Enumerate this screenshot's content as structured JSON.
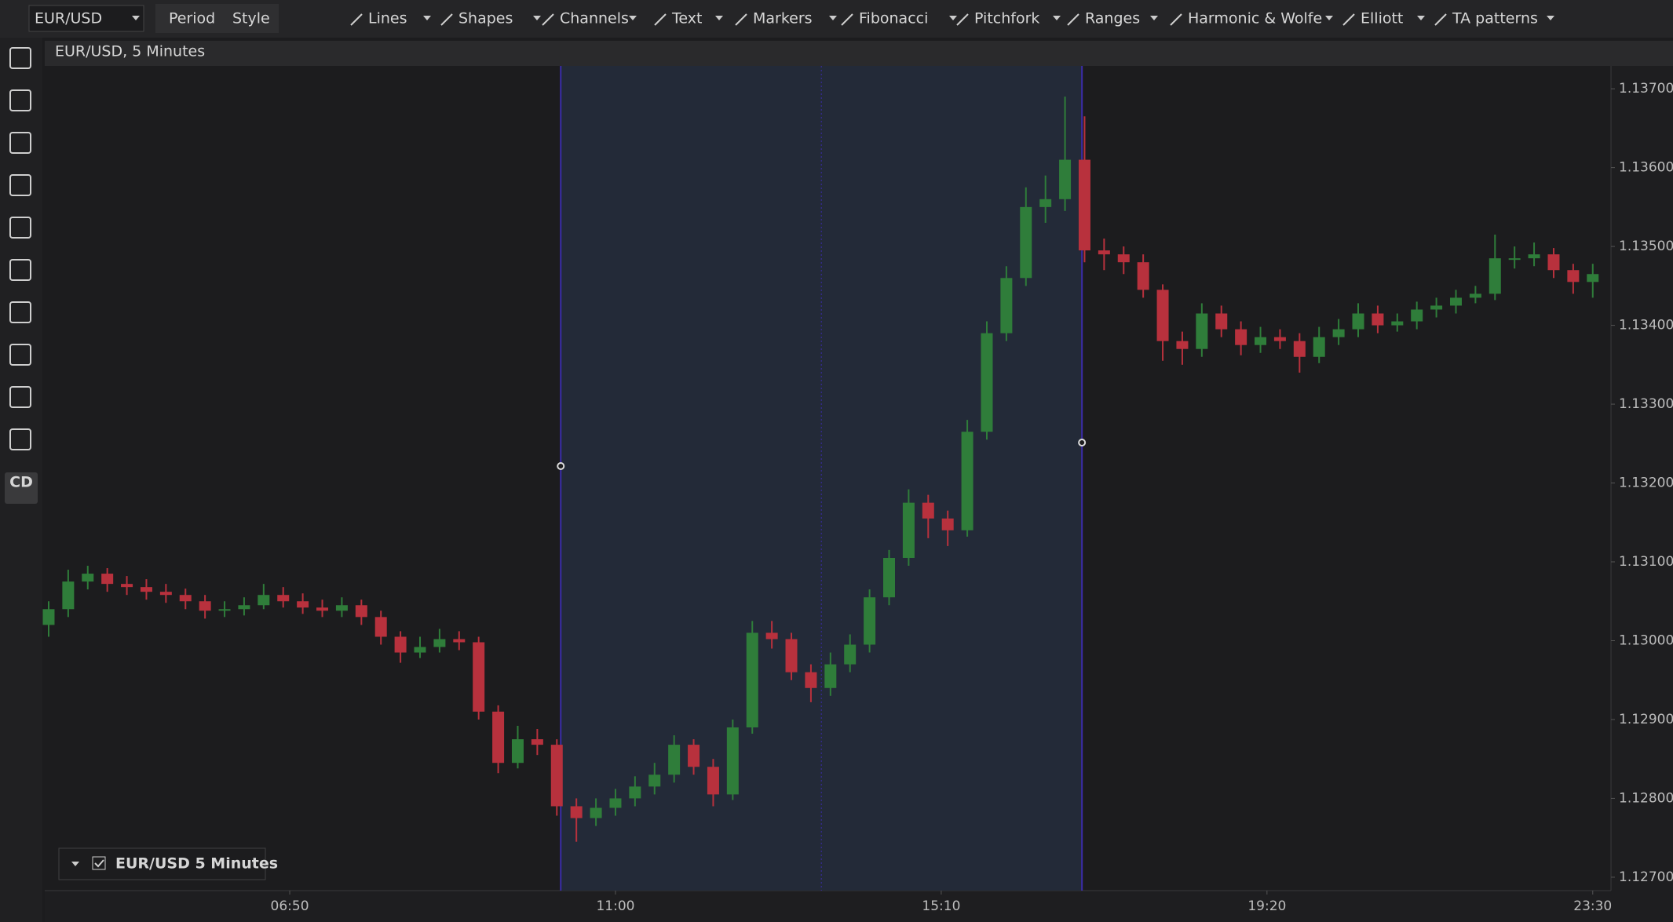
{
  "toolbar": {
    "symbol": "EUR/USD",
    "buttons": [
      "Period",
      "Style"
    ],
    "tools": [
      "Lines",
      "Shapes",
      "Channels",
      "Text",
      "Markers",
      "Fibonacci",
      "Pitchfork",
      "Ranges",
      "Harmonic & Wolfe",
      "Elliott",
      "TA patterns"
    ]
  },
  "window": {
    "title": "EUR/USD, 5 Minutes"
  },
  "sidebar": {
    "label": "CD"
  },
  "chart_data": {
    "type": "candlestick",
    "up_color": "#2f7d3a",
    "down_color": "#b8313d",
    "grid": false,
    "xlim": [
      222,
      1424
    ],
    "ylim": [
      1.12683,
      1.13729
    ],
    "xticks": [
      {
        "value": 410,
        "label": "06:50"
      },
      {
        "value": 660,
        "label": "11:00"
      },
      {
        "value": 910,
        "label": "15:10"
      },
      {
        "value": 1160,
        "label": "19:20"
      },
      {
        "value": 1410,
        "label": "23:30"
      }
    ],
    "yticks": [
      {
        "value": 1.127,
        "label": "1.12700"
      },
      {
        "value": 1.128,
        "label": "1.12800"
      },
      {
        "value": 1.129,
        "label": "1.12900"
      },
      {
        "value": 1.13,
        "label": "1.13000"
      },
      {
        "value": 1.131,
        "label": "1.13100"
      },
      {
        "value": 1.132,
        "label": "1.13200"
      },
      {
        "value": 1.133,
        "label": "1.13300"
      },
      {
        "value": 1.134,
        "label": "1.13400"
      },
      {
        "value": 1.135,
        "label": "1.13500"
      },
      {
        "value": 1.136,
        "label": "1.13600"
      },
      {
        "value": 1.137,
        "label": "1.13700"
      }
    ],
    "highlight_range": [
      618,
      1018
    ],
    "x": [
      225,
      240,
      255,
      270,
      285,
      300,
      315,
      330,
      345,
      360,
      375,
      390,
      405,
      420,
      435,
      450,
      465,
      480,
      495,
      510,
      525,
      540,
      555,
      570,
      585,
      600,
      615,
      630,
      645,
      660,
      675,
      690,
      705,
      720,
      735,
      750,
      765,
      780,
      795,
      810,
      825,
      840,
      855,
      870,
      885,
      900,
      915,
      930,
      945,
      960,
      975,
      990,
      1005,
      1020,
      1035,
      1050,
      1065,
      1080,
      1095,
      1110,
      1125,
      1140,
      1155,
      1170,
      1185,
      1200,
      1215,
      1230,
      1245,
      1260,
      1275,
      1290,
      1305,
      1320,
      1335,
      1350,
      1365,
      1380,
      1395,
      1410
    ],
    "series": [
      {
        "name": "EUR/USD 5 Minutes",
        "open": [
          1.1302,
          1.1304,
          1.13075,
          1.13085,
          1.13072,
          1.13068,
          1.13062,
          1.13058,
          1.1305,
          1.13038,
          1.1304,
          1.13045,
          1.13058,
          1.1305,
          1.13042,
          1.13038,
          1.13045,
          1.1303,
          1.13005,
          1.12985,
          1.12992,
          1.13002,
          1.12998,
          1.1291,
          1.12845,
          1.12875,
          1.12868,
          1.1279,
          1.12775,
          1.12788,
          1.128,
          1.12815,
          1.1283,
          1.12868,
          1.1284,
          1.12805,
          1.1289,
          1.1301,
          1.13002,
          1.1296,
          1.1294,
          1.1297,
          1.12995,
          1.13055,
          1.13105,
          1.13175,
          1.13155,
          1.1314,
          1.13265,
          1.1339,
          1.1346,
          1.1355,
          1.1356,
          1.1361,
          1.13495,
          1.1349,
          1.1348,
          1.13445,
          1.1338,
          1.1337,
          1.13415,
          1.13395,
          1.13375,
          1.13385,
          1.1338,
          1.1336,
          1.13385,
          1.13395,
          1.13415,
          1.134,
          1.13405,
          1.1342,
          1.13425,
          1.13435,
          1.1344,
          1.13485,
          1.13485,
          1.1349,
          1.1347,
          1.13455
        ],
        "high": [
          1.1305,
          1.1309,
          1.13095,
          1.13092,
          1.13082,
          1.13078,
          1.13072,
          1.13066,
          1.13058,
          1.1305,
          1.13055,
          1.13072,
          1.13068,
          1.1306,
          1.13052,
          1.13055,
          1.13052,
          1.13038,
          1.13012,
          1.13005,
          1.13015,
          1.13012,
          1.13005,
          1.12918,
          1.12892,
          1.12888,
          1.12875,
          1.128,
          1.128,
          1.12812,
          1.12828,
          1.12845,
          1.1288,
          1.12875,
          1.1285,
          1.129,
          1.13025,
          1.13025,
          1.1301,
          1.1297,
          1.12985,
          1.13008,
          1.13065,
          1.13115,
          1.13192,
          1.13185,
          1.13165,
          1.1328,
          1.13405,
          1.13475,
          1.13575,
          1.1359,
          1.1369,
          1.13665,
          1.1351,
          1.135,
          1.1349,
          1.13452,
          1.13392,
          1.13428,
          1.13425,
          1.13405,
          1.13398,
          1.13395,
          1.1339,
          1.13398,
          1.13408,
          1.13428,
          1.13425,
          1.13415,
          1.1343,
          1.13435,
          1.13445,
          1.1345,
          1.13515,
          1.135,
          1.13505,
          1.13498,
          1.13478,
          1.13478
        ],
        "low": [
          1.13005,
          1.1303,
          1.13065,
          1.13062,
          1.13058,
          1.13052,
          1.13048,
          1.1304,
          1.13028,
          1.1303,
          1.13032,
          1.1304,
          1.13042,
          1.13034,
          1.1303,
          1.1303,
          1.1302,
          1.12995,
          1.12972,
          1.12978,
          1.12985,
          1.12988,
          1.129,
          1.12832,
          1.12838,
          1.12855,
          1.12778,
          1.12745,
          1.12765,
          1.12778,
          1.1279,
          1.12805,
          1.1282,
          1.1283,
          1.1279,
          1.12798,
          1.12882,
          1.1299,
          1.1295,
          1.12922,
          1.1293,
          1.1296,
          1.12985,
          1.13045,
          1.13095,
          1.1313,
          1.1312,
          1.13132,
          1.13255,
          1.1338,
          1.1345,
          1.1353,
          1.13545,
          1.1348,
          1.1347,
          1.13465,
          1.13435,
          1.13355,
          1.1335,
          1.1336,
          1.13385,
          1.13362,
          1.13365,
          1.1337,
          1.1334,
          1.13352,
          1.13375,
          1.13385,
          1.1339,
          1.13392,
          1.13395,
          1.1341,
          1.13415,
          1.13428,
          1.13432,
          1.13472,
          1.13475,
          1.1346,
          1.1344,
          1.13435
        ],
        "close": [
          1.1304,
          1.13075,
          1.13085,
          1.13072,
          1.13068,
          1.13062,
          1.13058,
          1.1305,
          1.13038,
          1.1304,
          1.13045,
          1.13058,
          1.1305,
          1.13042,
          1.13038,
          1.13045,
          1.1303,
          1.13005,
          1.12985,
          1.12992,
          1.13002,
          1.12998,
          1.1291,
          1.12845,
          1.12875,
          1.12868,
          1.1279,
          1.12775,
          1.12788,
          1.128,
          1.12815,
          1.1283,
          1.12868,
          1.1284,
          1.12805,
          1.1289,
          1.1301,
          1.13002,
          1.1296,
          1.1294,
          1.1297,
          1.12995,
          1.13055,
          1.13105,
          1.13175,
          1.13155,
          1.1314,
          1.13265,
          1.1339,
          1.1346,
          1.1355,
          1.1356,
          1.1361,
          1.13495,
          1.1349,
          1.1348,
          1.13445,
          1.1338,
          1.1337,
          1.13415,
          1.13395,
          1.13375,
          1.13385,
          1.1338,
          1.1336,
          1.13385,
          1.13395,
          1.13415,
          1.134,
          1.13405,
          1.1342,
          1.13425,
          1.13435,
          1.1344,
          1.13485,
          1.13485,
          1.1349,
          1.1347,
          1.13455,
          1.13465
        ]
      }
    ]
  }
}
